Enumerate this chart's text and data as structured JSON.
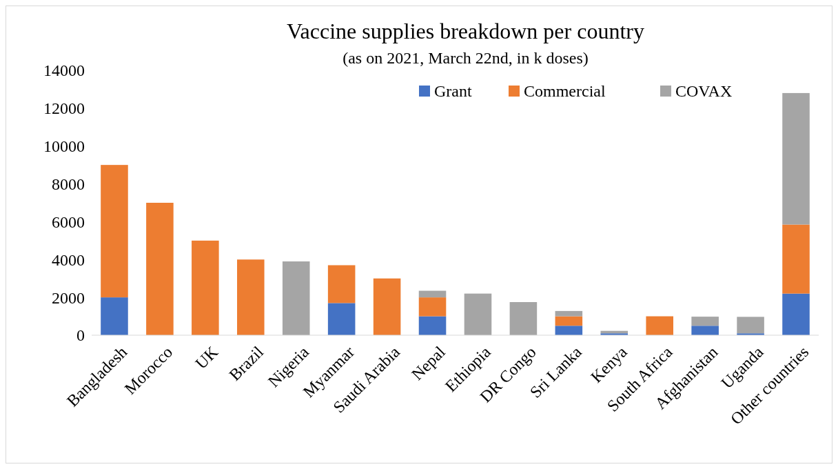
{
  "chart_data": {
    "type": "bar",
    "title": "Vaccine supplies breakdown per country",
    "subtitle": "(as on 2021, March 22nd, in k doses)",
    "categories": [
      "Bangladesh",
      "Morocco",
      "UK",
      "Brazil",
      "Nigeria",
      "Myanmar",
      "Saudi Arabia",
      "Nepal",
      "Ethiopia",
      "DR Congo",
      "Sri Lanka",
      "Kenya",
      "South Africa",
      "Afghanistan",
      "Uganda",
      "Other countries"
    ],
    "stacked": true,
    "series": [
      {
        "name": "Grant",
        "color": "#4472c4",
        "values": [
          2000,
          0,
          0,
          0,
          0,
          1700,
          0,
          1000,
          0,
          0,
          500,
          100,
          0,
          500,
          100,
          2200
        ]
      },
      {
        "name": "Commercial",
        "color": "#ed7d31",
        "values": [
          7000,
          7000,
          5000,
          4000,
          0,
          2000,
          3000,
          1000,
          0,
          0,
          500,
          0,
          1000,
          0,
          0,
          3650
        ]
      },
      {
        "name": "COVAX",
        "color": "#a5a5a5",
        "values": [
          0,
          0,
          0,
          0,
          3900,
          0,
          0,
          350,
          2200,
          1750,
          280,
          130,
          0,
          480,
          870,
          6950
        ]
      }
    ],
    "ylim": [
      0,
      14000
    ],
    "yticks": [
      0,
      2000,
      4000,
      6000,
      8000,
      10000,
      12000,
      14000
    ],
    "grid": false,
    "legend": "top right"
  }
}
